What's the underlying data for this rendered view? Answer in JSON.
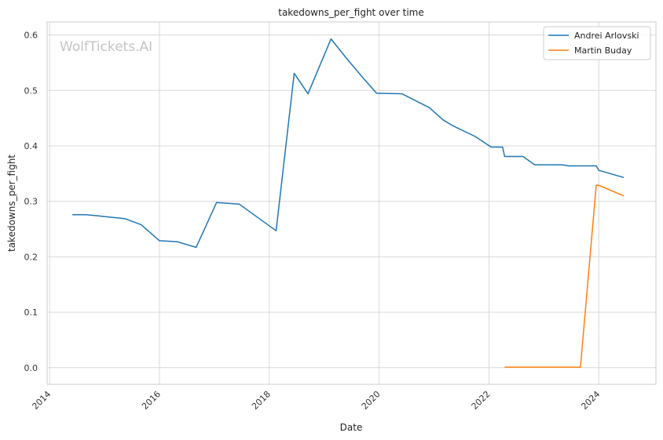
{
  "chart_data": {
    "type": "line",
    "title": "takedowns_per_fight over time",
    "xlabel": "Date",
    "ylabel": "takedowns_per_fight",
    "watermark": "WolfTickets.AI",
    "xlim": [
      "2013-12-15",
      "2025-01-15"
    ],
    "ylim": [
      -0.03,
      0.6236
    ],
    "x_ticks": [
      "2014",
      "2016",
      "2018",
      "2020",
      "2022",
      "2024"
    ],
    "y_ticks": [
      "0.0",
      "0.1",
      "0.2",
      "0.3",
      "0.4",
      "0.5",
      "0.6"
    ],
    "grid": true,
    "legend_position": "top-right",
    "series": [
      {
        "name": "Andrei Arlovski",
        "color": "#1f77b4",
        "points": [
          [
            "2014-06-01",
            0.276
          ],
          [
            "2014-09-01",
            0.276
          ],
          [
            "2015-05-15",
            0.269
          ],
          [
            "2015-09-01",
            0.258
          ],
          [
            "2016-01-01",
            0.229
          ],
          [
            "2016-05-01",
            0.227
          ],
          [
            "2016-09-01",
            0.217
          ],
          [
            "2017-01-15",
            0.298
          ],
          [
            "2017-06-15",
            0.295
          ],
          [
            "2018-02-15",
            0.247
          ],
          [
            "2018-06-15",
            0.531
          ],
          [
            "2018-09-15",
            0.494
          ],
          [
            "2019-02-15",
            0.593
          ],
          [
            "2019-06-01",
            0.557
          ],
          [
            "2019-09-15",
            0.523
          ],
          [
            "2019-12-15",
            0.495
          ],
          [
            "2020-06-01",
            0.494
          ],
          [
            "2020-12-01",
            0.469
          ],
          [
            "2021-03-01",
            0.447
          ],
          [
            "2021-05-01",
            0.437
          ],
          [
            "2021-10-01",
            0.417
          ],
          [
            "2022-01-15",
            0.398
          ],
          [
            "2022-04-01",
            0.398
          ],
          [
            "2022-04-15",
            0.381
          ],
          [
            "2022-08-15",
            0.381
          ],
          [
            "2022-11-01",
            0.366
          ],
          [
            "2023-05-01",
            0.366
          ],
          [
            "2023-06-15",
            0.364
          ],
          [
            "2023-12-15",
            0.364
          ],
          [
            "2024-01-01",
            0.356
          ],
          [
            "2024-06-15",
            0.343
          ]
        ]
      },
      {
        "name": "Martin Buday",
        "color": "#ff7f0e",
        "points": [
          [
            "2022-04-15",
            0.001
          ],
          [
            "2023-09-01",
            0.001
          ],
          [
            "2023-12-15",
            0.329
          ],
          [
            "2024-01-01",
            0.329
          ],
          [
            "2024-06-15",
            0.31
          ]
        ]
      }
    ]
  }
}
